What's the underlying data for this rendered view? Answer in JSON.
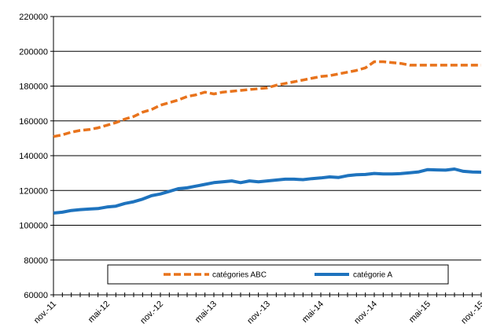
{
  "chart_data": {
    "type": "line",
    "title": "",
    "xlabel": "",
    "ylabel": "",
    "ylim": [
      60000,
      220000
    ],
    "yticks": [
      60000,
      80000,
      100000,
      120000,
      140000,
      160000,
      180000,
      200000,
      220000
    ],
    "x": [
      "nov.-11",
      "déc.-11",
      "janv.-12",
      "févr.-12",
      "mars-12",
      "avr.-12",
      "mai-12",
      "juin-12",
      "juil.-12",
      "août-12",
      "sept.-12",
      "oct.-12",
      "nov.-12",
      "déc.-12",
      "janv.-13",
      "févr.-13",
      "mars-13",
      "avr.-13",
      "mai-13",
      "juin-13",
      "juil.-13",
      "août-13",
      "sept.-13",
      "oct.-13",
      "nov.-13",
      "déc.-13",
      "janv.-14",
      "févr.-14",
      "mars-14",
      "avr.-14",
      "mai-14",
      "juin-14",
      "juil.-14",
      "août-14",
      "sept.-14",
      "oct.-14",
      "nov.-14",
      "déc.-14",
      "janv.-15",
      "févr.-15",
      "mars-15",
      "avr.-15",
      "mai-15",
      "juin-15",
      "juil.-15",
      "août-15",
      "sept.-15",
      "oct.-15",
      "nov.-15"
    ],
    "xtick_labels": [
      "nov.-11",
      "mai-12",
      "nov.-12",
      "mai-13",
      "nov.-13",
      "mai-14",
      "nov.-14",
      "mai-15",
      "nov.-15"
    ],
    "xtick_every": 6,
    "grid": "horizontal",
    "legend": "bottom",
    "series": [
      {
        "name": "catégories ABC",
        "color": "#E8731C",
        "style": "dashed",
        "values": [
          151000,
          152000,
          153500,
          154500,
          155000,
          156000,
          157500,
          159000,
          161000,
          162500,
          165000,
          166500,
          169000,
          170500,
          172000,
          174000,
          175000,
          176500,
          175500,
          176500,
          177000,
          177500,
          178000,
          178500,
          179000,
          180500,
          181500,
          182500,
          183500,
          184500,
          185500,
          186000,
          187000,
          188000,
          189000,
          190500,
          194000,
          194000,
          193500,
          193000,
          192000,
          192000,
          192000,
          192000,
          192000,
          192000,
          192000,
          192000,
          192000
        ]
      },
      {
        "name": "catégorie A",
        "color": "#1E73BE",
        "style": "solid",
        "values": [
          107000,
          107500,
          108500,
          109000,
          109300,
          109600,
          110500,
          111000,
          112500,
          113500,
          115000,
          117000,
          118000,
          119500,
          121000,
          121500,
          122500,
          123500,
          124500,
          125000,
          125500,
          124500,
          125500,
          125000,
          125500,
          126000,
          126500,
          126500,
          126200,
          126800,
          127200,
          127800,
          127500,
          128500,
          129000,
          129200,
          129800,
          129500,
          129500,
          129700,
          130200,
          130700,
          132000,
          131800,
          131700,
          132300,
          131000,
          130600,
          130500
        ]
      }
    ]
  }
}
